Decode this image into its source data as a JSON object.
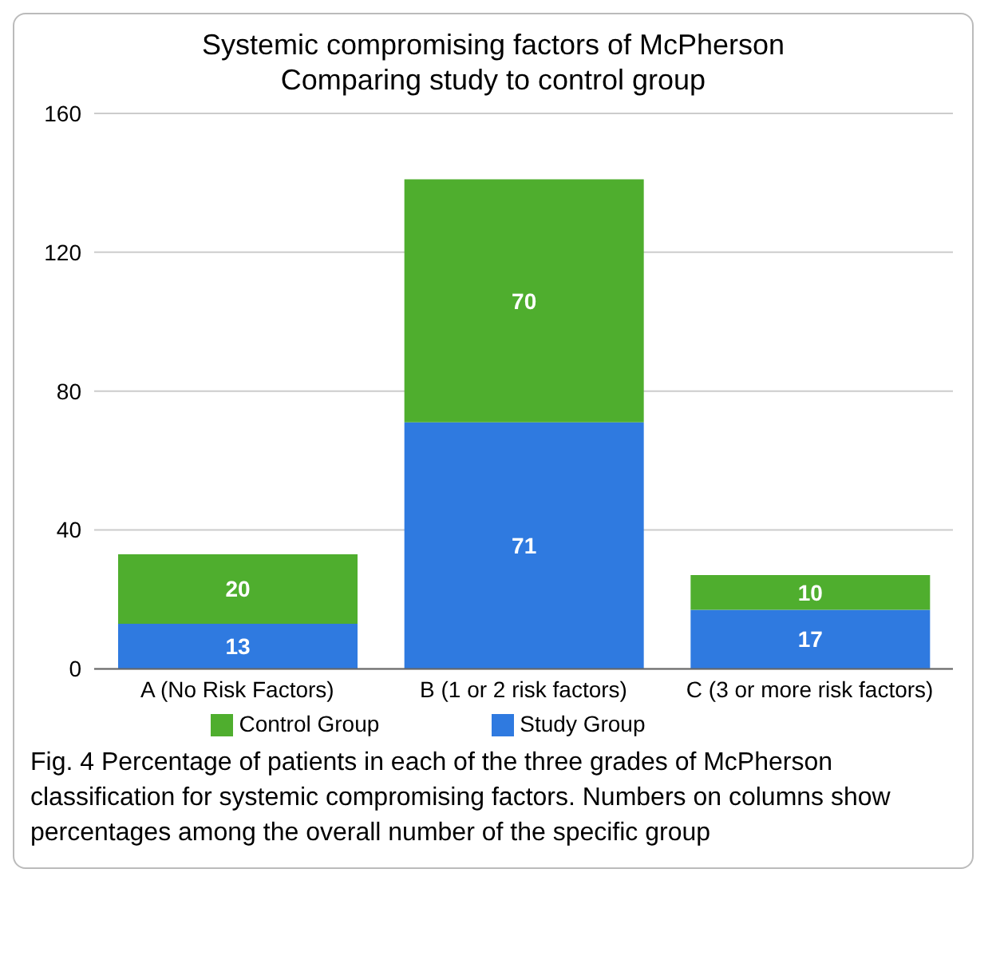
{
  "chart_data": {
    "type": "bar",
    "title": "Systemic compromising factors of McPherson",
    "subtitle": "Comparing study to control group",
    "categories": [
      "A (No Risk Factors)",
      "B (1 or 2 risk factors)",
      "C (3 or more risk factors)"
    ],
    "series": [
      {
        "name": "Study Group",
        "color": "#2f7ae0",
        "values": [
          13,
          71,
          17
        ]
      },
      {
        "name": "Control Group",
        "color": "#4fae2e",
        "values": [
          20,
          70,
          10
        ]
      }
    ],
    "stacked": true,
    "data_labels": true,
    "ylim": [
      0,
      160
    ],
    "yticks": [
      0,
      40,
      80,
      120,
      160
    ],
    "grid": "y",
    "legend": "bottom",
    "annotations": [
      "Fig. 4 Percentage of patients in each of the three grades of McPherson classification for systemic compromising factors. Numbers on columns show percentages among the overall number of the specific group"
    ]
  }
}
